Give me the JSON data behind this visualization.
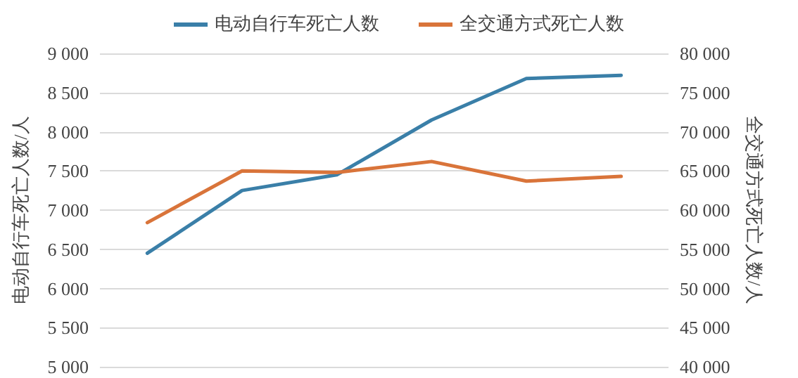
{
  "chart_data": {
    "type": "line",
    "ylabel": "电动自行车死亡人数/人",
    "y2label": "全交通方式死亡人数/人",
    "categories": [
      null,
      null,
      null,
      null,
      null,
      null
    ],
    "series": [
      {
        "name": "电动自行车死亡人数",
        "color": "#3a7fa8",
        "values": [
          6450,
          7250,
          7450,
          8150,
          8680,
          8720
        ]
      },
      {
        "name": "全交通方式死亡人数",
        "color": "#d9743a",
        "axis": "y2",
        "values": [
          58400,
          65000,
          64800,
          66200,
          63700,
          64300
        ]
      }
    ],
    "ylim": [
      5000,
      9000
    ],
    "yticks": [
      {
        "value": 5000,
        "label": "5 000"
      },
      {
        "value": 5500,
        "label": "5 500"
      },
      {
        "value": 6000,
        "label": "6 000"
      },
      {
        "value": 6500,
        "label": "6 500"
      },
      {
        "value": 7000,
        "label": "7 000"
      },
      {
        "value": 7500,
        "label": "7 500"
      },
      {
        "value": 8000,
        "label": "8 000"
      },
      {
        "value": 8500,
        "label": "8 500"
      },
      {
        "value": 9000,
        "label": "9 000"
      }
    ],
    "y2lim": [
      40000,
      80000
    ],
    "y2ticks": [
      {
        "value": 40000,
        "label": "40 000"
      },
      {
        "value": 45000,
        "label": "45 000"
      },
      {
        "value": 50000,
        "label": "50 000"
      },
      {
        "value": 55000,
        "label": "55 000"
      },
      {
        "value": 60000,
        "label": "60 000"
      },
      {
        "value": 65000,
        "label": "65 000"
      },
      {
        "value": 70000,
        "label": "70 000"
      },
      {
        "value": 75000,
        "label": "75 000"
      },
      {
        "value": 80000,
        "label": "80 000"
      }
    ],
    "grid": "y",
    "legend": "top",
    "marker": "none",
    "line_style": "solid",
    "tick_labels": "y"
  }
}
